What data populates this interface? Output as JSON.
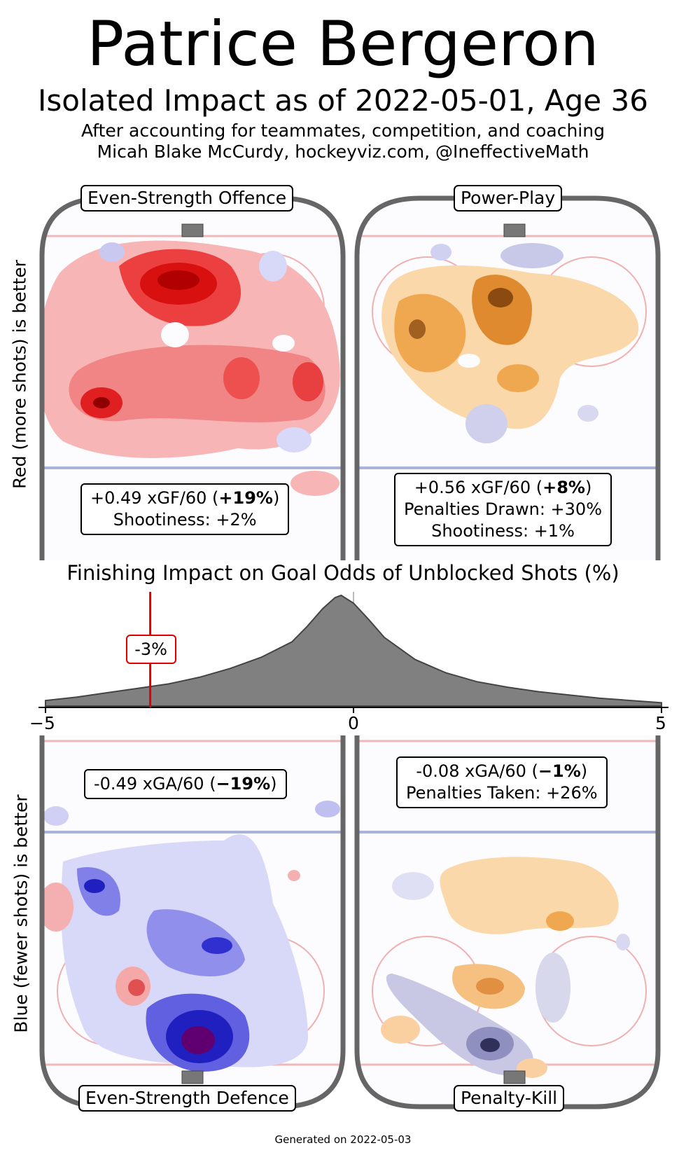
{
  "header": {
    "title": "Patrice Bergeron",
    "subtitle": "Isolated Impact as of 2022-05-01, Age 36",
    "note": "After accounting for teammates, competition, and coaching",
    "credit": "Micah Blake McCurdy, hockeyviz.com, @IneffectiveMath"
  },
  "axis_labels": {
    "top": "Red (more shots) is better",
    "bottom": "Blue (fewer shots) is better"
  },
  "panels": {
    "es_offence": {
      "label": "Even-Strength Offence",
      "xg": "+0.49 xGF/60 (",
      "pct": "+19%",
      "close": ")",
      "extra": "Shootiness: +2%"
    },
    "power_play": {
      "label": "Power-Play",
      "xg": "+0.56 xGF/60 (",
      "pct": "+8%",
      "close": ")",
      "extra": "Penalties Drawn: +30%",
      "extra2": "Shootiness: +1%"
    },
    "es_defence": {
      "label": "Even-Strength Defence",
      "xg": "-0.49 xGA/60 (",
      "pct": "−19%",
      "close": ")"
    },
    "penalty_kill": {
      "label": "Penalty-Kill",
      "xg": "-0.08 xGA/60 (",
      "pct": "−1%",
      "close": ")",
      "extra": "Penalties Taken: +26%"
    }
  },
  "colors": {
    "red": "#e8191c",
    "blue": "#3030d0",
    "orange": "#e89030",
    "rink": "#666666",
    "marker": "#e00000"
  },
  "chart_data": {
    "type": "area",
    "title": "Finishing Impact on Goal Odds of Unblocked Shots (%)",
    "x_ticks": [
      "−5",
      "0",
      "5"
    ],
    "xlim": [
      -5,
      5
    ],
    "marker_value": -3.3,
    "marker_label": "-3%",
    "distribution": {
      "x": [
        -5,
        -4.5,
        -4,
        -3.5,
        -3,
        -2.5,
        -2,
        -1.5,
        -1,
        -0.75,
        -0.5,
        -0.3,
        -0.2,
        0,
        0.25,
        0.5,
        1,
        1.5,
        2,
        2.5,
        3,
        3.5,
        4,
        4.5,
        5
      ],
      "y": [
        0.05,
        0.08,
        0.12,
        0.16,
        0.2,
        0.26,
        0.34,
        0.44,
        0.58,
        0.72,
        0.88,
        0.98,
        1.0,
        0.93,
        0.78,
        0.62,
        0.42,
        0.3,
        0.22,
        0.17,
        0.13,
        0.1,
        0.07,
        0.05,
        0.03
      ]
    }
  },
  "footer": "Generated on 2022-05-03"
}
